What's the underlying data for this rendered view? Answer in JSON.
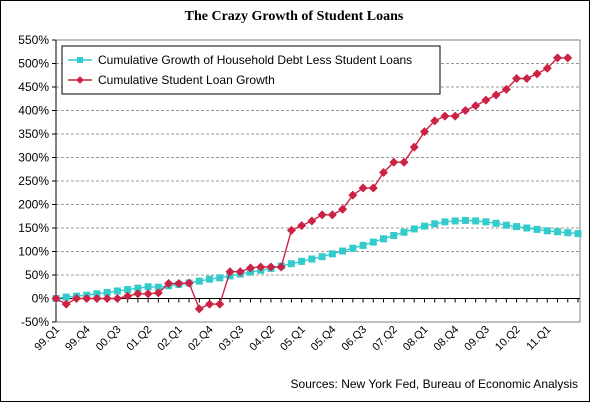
{
  "chart_data": {
    "type": "line",
    "title": "The Crazy Growth of Student Loans",
    "source": "Sources: New York Fed, Bureau of Economic Analysis",
    "xlabel": "",
    "ylabel": "",
    "ylim": [
      -50,
      550
    ],
    "y_ticks": [
      -50,
      0,
      50,
      100,
      150,
      200,
      250,
      300,
      350,
      400,
      450,
      500,
      550
    ],
    "y_tick_labels": [
      "-50%",
      "0%",
      "50%",
      "100%",
      "150%",
      "200%",
      "250%",
      "300%",
      "350%",
      "400%",
      "450%",
      "500%",
      "550%"
    ],
    "x_tick_labels": [
      {
        "index": 0,
        "label": "99.Q1"
      },
      {
        "index": 3,
        "label": "99.Q4"
      },
      {
        "index": 6,
        "label": "00.Q3"
      },
      {
        "index": 9,
        "label": "01.Q2"
      },
      {
        "index": 12,
        "label": "02.Q1"
      },
      {
        "index": 15,
        "label": "02.Q4"
      },
      {
        "index": 18,
        "label": "03.Q3"
      },
      {
        "index": 21,
        "label": "04.Q2"
      },
      {
        "index": 24,
        "label": "05.Q1"
      },
      {
        "index": 27,
        "label": "05.Q4"
      },
      {
        "index": 30,
        "label": "06.Q3"
      },
      {
        "index": 33,
        "label": "07.Q2"
      },
      {
        "index": 36,
        "label": "08.Q1"
      },
      {
        "index": 39,
        "label": "08.Q4"
      },
      {
        "index": 42,
        "label": "09.Q3"
      },
      {
        "index": 45,
        "label": "10.Q2"
      },
      {
        "index": 48,
        "label": "11.Q1"
      }
    ],
    "grid": true,
    "legend_position": "top-left",
    "series": [
      {
        "name": "Cumulative Growth of Household Debt Less Student Loans",
        "color": "#33CCCC",
        "marker": "square",
        "values": [
          0,
          3,
          5,
          7,
          10,
          13,
          16,
          19,
          22,
          25,
          24,
          27,
          30,
          33,
          37,
          41,
          44,
          48,
          52,
          56,
          60,
          64,
          69,
          74,
          79,
          84,
          89,
          95,
          101,
          107,
          113,
          120,
          127,
          134,
          141,
          148,
          154,
          159,
          163,
          165,
          166,
          165,
          163,
          160,
          156,
          153,
          150,
          147,
          144,
          142,
          140,
          138
        ]
      },
      {
        "name": "Cumulative Student Loan Growth",
        "color": "#CC2244",
        "marker": "diamond",
        "values": [
          0,
          -12,
          0,
          0,
          0,
          0,
          0,
          5,
          10,
          10,
          12,
          32,
          32,
          33,
          -22,
          -12,
          -12,
          57,
          57,
          65,
          67,
          67,
          67,
          145,
          155,
          165,
          178,
          178,
          190,
          220,
          235,
          235,
          268,
          290,
          290,
          322,
          355,
          378,
          388,
          388,
          400,
          410,
          422,
          433,
          445,
          468,
          468,
          478,
          490,
          512,
          512
        ]
      }
    ]
  }
}
